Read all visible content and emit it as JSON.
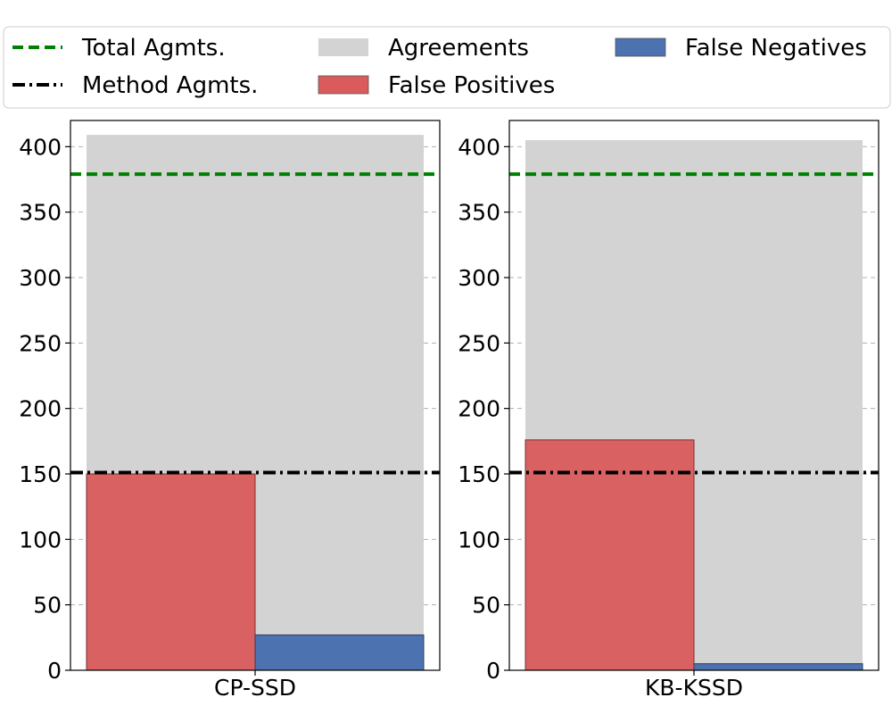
{
  "legend": {
    "items": [
      {
        "label": "Total Agmts.",
        "kind": "line",
        "style": "dashed",
        "color": "#008000"
      },
      {
        "label": "Method Agmts.",
        "kind": "line",
        "style": "dashdot",
        "color": "#000000"
      },
      {
        "label": "Agreements",
        "kind": "patch",
        "color": "#d3d3d3"
      },
      {
        "label": "False Positives",
        "kind": "patch",
        "color": "#d95b5b"
      },
      {
        "label": "False Negatives",
        "kind": "patch",
        "color": "#4c72b0"
      }
    ],
    "placement": "top"
  },
  "chart_data": [
    {
      "type": "bar",
      "xlabel": "CP-SSD",
      "ylim": [
        0,
        420
      ],
      "yticks": [
        0,
        50,
        100,
        150,
        200,
        250,
        300,
        350,
        400
      ],
      "grid": true,
      "agreements": 409,
      "false_positives": 150,
      "false_negatives": 27,
      "total_agmts": 379,
      "method_agmts": 151
    },
    {
      "type": "bar",
      "xlabel": "KB-KSSD",
      "ylim": [
        0,
        420
      ],
      "yticks": [
        0,
        50,
        100,
        150,
        200,
        250,
        300,
        350,
        400
      ],
      "grid": true,
      "agreements": 405,
      "false_positives": 176,
      "false_negatives": 5,
      "total_agmts": 379,
      "method_agmts": 151
    }
  ]
}
